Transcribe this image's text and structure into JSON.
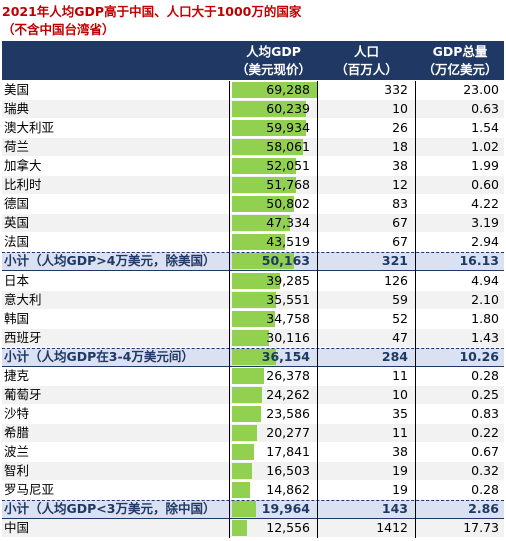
{
  "title_line1": "2021年人均GDP高于中国、人口大于1000万的国家",
  "title_line2": "（不含中国台湾省）",
  "colors": {
    "header_bg": "#1f3864",
    "bar": "#92d050",
    "subtotal_bg": "#d9e1f2",
    "title": "#c00000"
  },
  "headers": {
    "gdp_pc_1": "人均GDP",
    "gdp_pc_2": "（美元现价）",
    "pop_1": "人口",
    "pop_2": "（百万人）",
    "gdp_1": "GDP总量",
    "gdp_2": "（万亿美元）"
  },
  "chart_data": {
    "type": "table",
    "columns": [
      "人均GDP（美元现价）",
      "人口（百万人）",
      "GDP总量（万亿美元）"
    ],
    "bar_max": 69288,
    "rows": [
      {
        "name": "美国",
        "gdp_pc": "69,288",
        "v": 69288,
        "pop": "332",
        "gdp": "23.00",
        "kind": "normal"
      },
      {
        "name": "瑞典",
        "gdp_pc": "60,239",
        "v": 60239,
        "pop": "10",
        "gdp": "0.63",
        "kind": "alt"
      },
      {
        "name": "澳大利亚",
        "gdp_pc": "59,934",
        "v": 59934,
        "pop": "26",
        "gdp": "1.54",
        "kind": "normal"
      },
      {
        "name": "荷兰",
        "gdp_pc": "58,061",
        "v": 58061,
        "pop": "18",
        "gdp": "1.02",
        "kind": "alt"
      },
      {
        "name": "加拿大",
        "gdp_pc": "52,051",
        "v": 52051,
        "pop": "38",
        "gdp": "1.99",
        "kind": "normal"
      },
      {
        "name": "比利时",
        "gdp_pc": "51,768",
        "v": 51768,
        "pop": "12",
        "gdp": "0.60",
        "kind": "alt"
      },
      {
        "name": "德国",
        "gdp_pc": "50,802",
        "v": 50802,
        "pop": "83",
        "gdp": "4.22",
        "kind": "normal"
      },
      {
        "name": "英国",
        "gdp_pc": "47,334",
        "v": 47334,
        "pop": "67",
        "gdp": "3.19",
        "kind": "alt"
      },
      {
        "name": "法国",
        "gdp_pc": "43,519",
        "v": 43519,
        "pop": "67",
        "gdp": "2.94",
        "kind": "normal"
      },
      {
        "name": "小计（人均GDP>4万美元，除美国）",
        "gdp_pc": "50,163",
        "v": 50163,
        "pop": "321",
        "gdp": "16.13",
        "kind": "sub"
      },
      {
        "name": "日本",
        "gdp_pc": "39,285",
        "v": 39285,
        "pop": "126",
        "gdp": "4.94",
        "kind": "normal"
      },
      {
        "name": "意大利",
        "gdp_pc": "35,551",
        "v": 35551,
        "pop": "59",
        "gdp": "2.10",
        "kind": "alt"
      },
      {
        "name": "韩国",
        "gdp_pc": "34,758",
        "v": 34758,
        "pop": "52",
        "gdp": "1.80",
        "kind": "normal"
      },
      {
        "name": "西班牙",
        "gdp_pc": "30,116",
        "v": 30116,
        "pop": "47",
        "gdp": "1.43",
        "kind": "alt"
      },
      {
        "name": "小计（人均GDP在3-4万美元间）",
        "gdp_pc": "36,154",
        "v": 36154,
        "pop": "284",
        "gdp": "10.26",
        "kind": "sub"
      },
      {
        "name": "捷克",
        "gdp_pc": "26,378",
        "v": 26378,
        "pop": "11",
        "gdp": "0.28",
        "kind": "normal"
      },
      {
        "name": "葡萄牙",
        "gdp_pc": "24,262",
        "v": 24262,
        "pop": "10",
        "gdp": "0.25",
        "kind": "alt"
      },
      {
        "name": "沙特",
        "gdp_pc": "23,586",
        "v": 23586,
        "pop": "35",
        "gdp": "0.83",
        "kind": "normal"
      },
      {
        "name": "希腊",
        "gdp_pc": "20,277",
        "v": 20277,
        "pop": "11",
        "gdp": "0.22",
        "kind": "alt"
      },
      {
        "name": "波兰",
        "gdp_pc": "17,841",
        "v": 17841,
        "pop": "38",
        "gdp": "0.67",
        "kind": "normal"
      },
      {
        "name": "智利",
        "gdp_pc": "16,503",
        "v": 16503,
        "pop": "19",
        "gdp": "0.32",
        "kind": "alt"
      },
      {
        "name": "罗马尼亚",
        "gdp_pc": "14,862",
        "v": 14862,
        "pop": "19",
        "gdp": "0.28",
        "kind": "normal"
      },
      {
        "name": "小计（人均GDP<3万美元，除中国）",
        "gdp_pc": "19,964",
        "v": 19964,
        "pop": "143",
        "gdp": "2.86",
        "kind": "sub"
      },
      {
        "name": "中国",
        "gdp_pc": "12,556",
        "v": 12556,
        "pop": "1412",
        "gdp": "17.73",
        "kind": "alt"
      }
    ]
  }
}
